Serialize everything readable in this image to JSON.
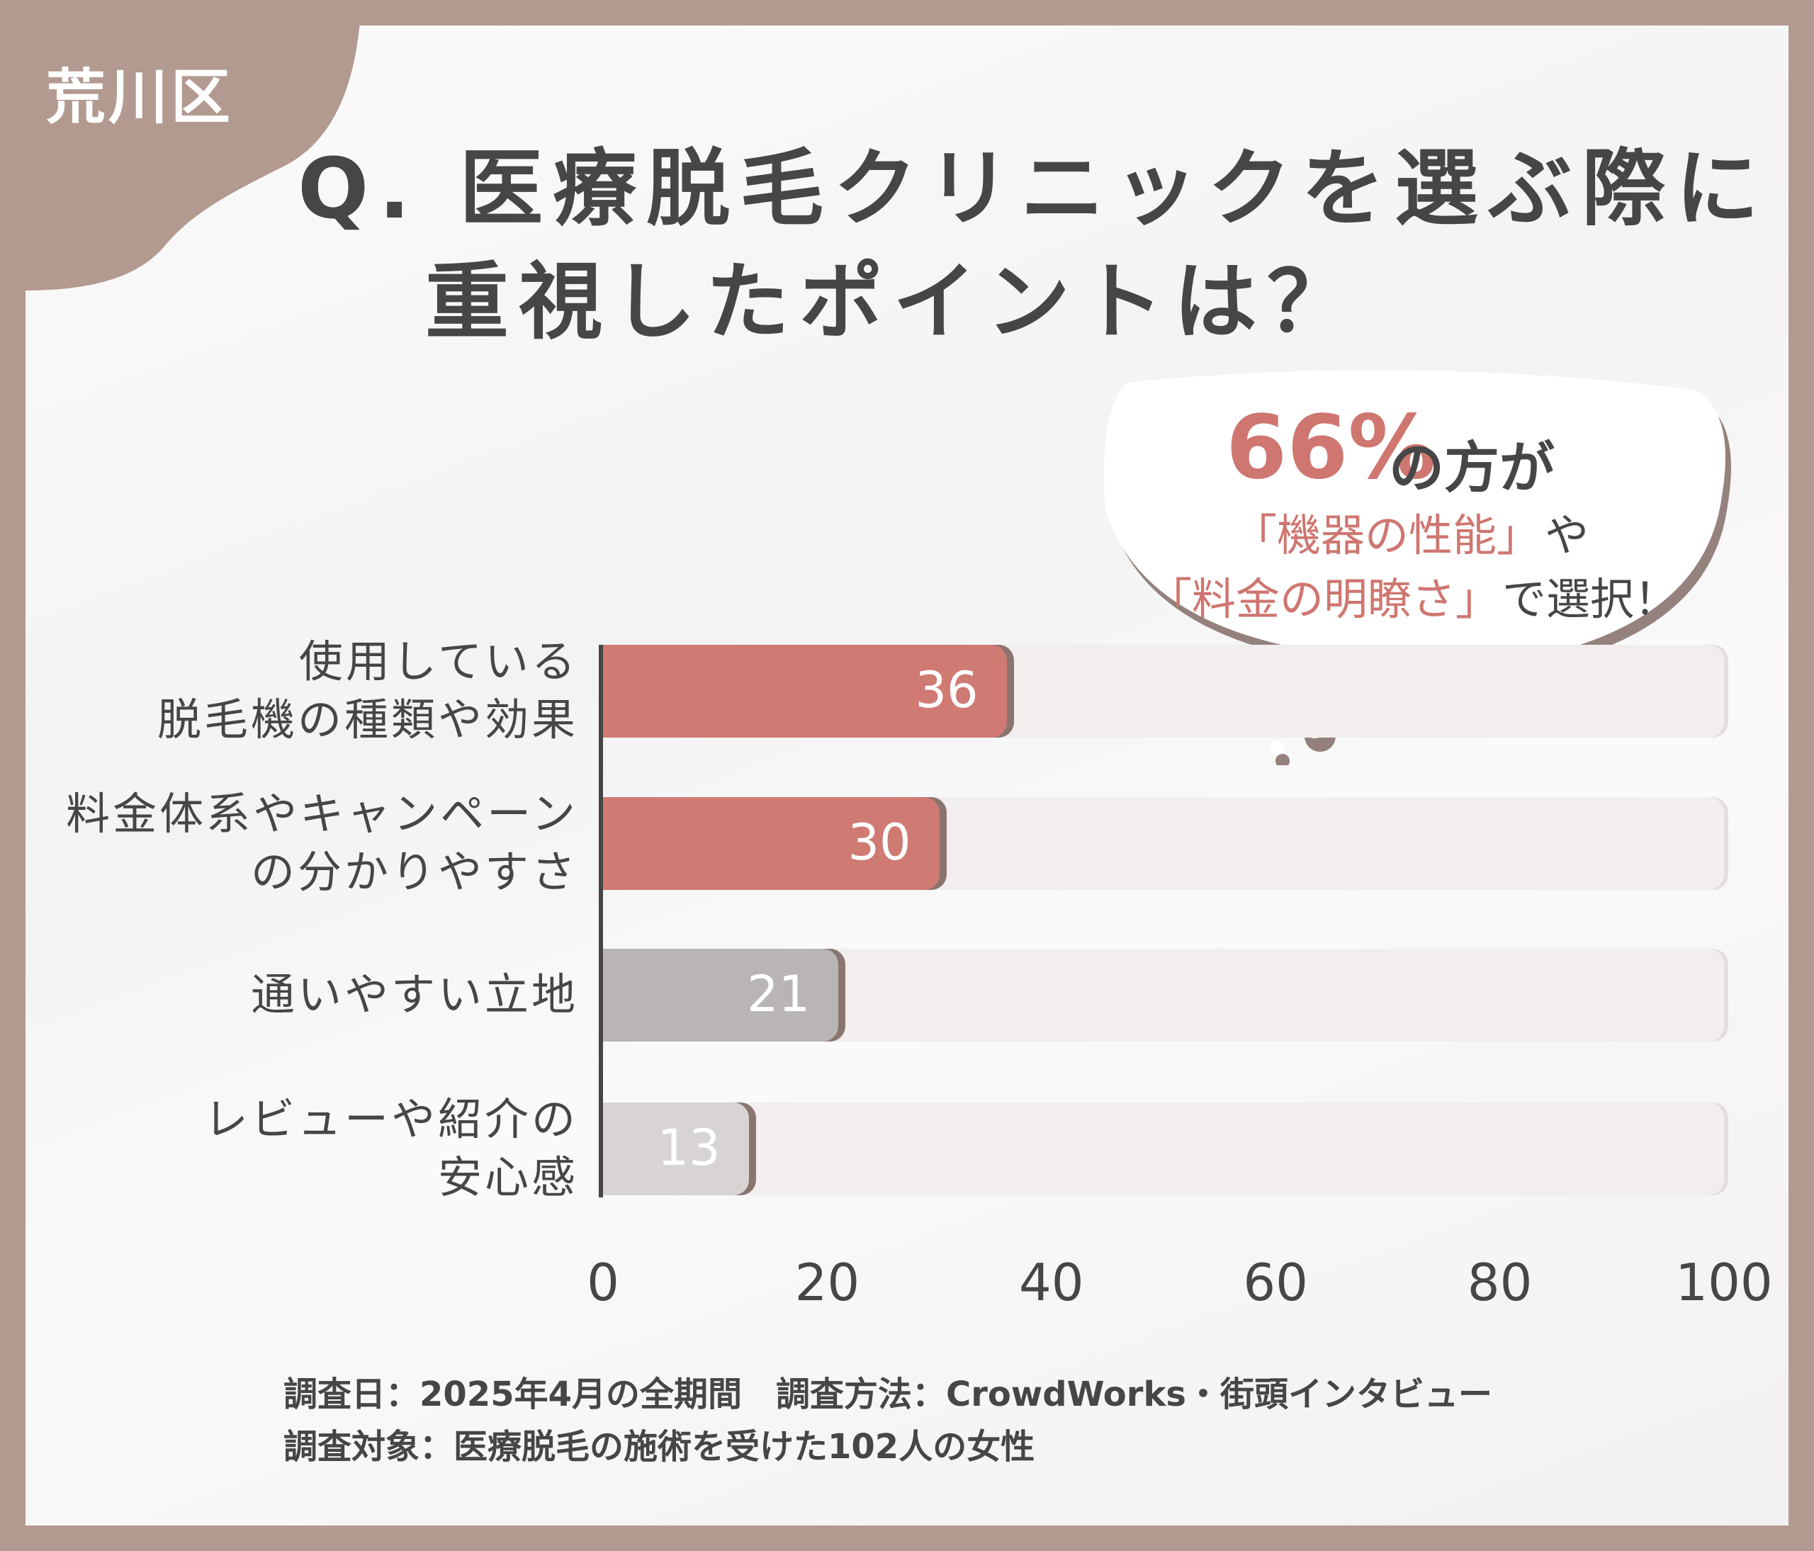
{
  "area_label": "荒川区",
  "title_line1": "Q. 医療脱毛クリニックを選ぶ際に",
  "title_line2": "重視したポイントは？",
  "callout": {
    "percent": "66%",
    "line1_rest": "の方が",
    "line2_highlight": "「機器の性能」",
    "line2_rest": "や",
    "line3_highlight": "「料金の明瞭さ」",
    "line3_rest": "で選択！"
  },
  "colors": {
    "accent": "#d07a74",
    "gray_dark": "#b9b5b4",
    "gray_light": "#d7d4d3",
    "track": "#f2eeed",
    "border": "#b39a90",
    "text": "#464646"
  },
  "chart_data": {
    "type": "bar",
    "orientation": "horizontal",
    "categories": [
      [
        "使用している",
        "脱毛機の種類や効果"
      ],
      [
        "料金体系やキャンペーン",
        "の分かりやすさ"
      ],
      [
        "通いやすい立地"
      ],
      [
        "レビューや紹介の",
        "安心感"
      ]
    ],
    "values": [
      36,
      30,
      21,
      13
    ],
    "value_labels": [
      "36",
      "30",
      "21",
      "13"
    ],
    "bar_colors": [
      "#d07a74",
      "#d07a74",
      "#b9b5b4",
      "#d7d4d3"
    ],
    "xlim": [
      0,
      100
    ],
    "xticks": [
      "0",
      "20",
      "40",
      "60",
      "80",
      "100"
    ],
    "grid": false
  },
  "footnote": {
    "line1": "調査日：2025年4月の全期間　調査方法：CrowdWorks・街頭インタビュー",
    "line2": "調査対象：医療脱毛の施術を受けた102人の女性"
  }
}
